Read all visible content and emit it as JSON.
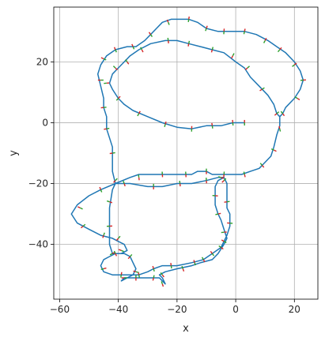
{
  "chart_data": {
    "type": "line",
    "title": "",
    "xlabel": "x",
    "ylabel": "y",
    "xlim": [
      -62,
      28
    ],
    "ylim": [
      -58,
      38
    ],
    "xticks": [
      -60,
      -40,
      -20,
      0,
      20
    ],
    "yticks": [
      -40,
      -20,
      0,
      20
    ],
    "grid": true,
    "aspect": "equal",
    "series": [
      {
        "color": "#1f77b4",
        "points": [
          [
            3,
            0
          ],
          [
            -1,
            0
          ],
          [
            -5,
            -1
          ],
          [
            -10,
            -1
          ],
          [
            -15,
            -2
          ],
          [
            -20,
            -1.5
          ],
          [
            -25,
            0
          ],
          [
            -30,
            2
          ],
          [
            -35,
            4
          ],
          [
            -38,
            6
          ],
          [
            -40,
            8
          ],
          [
            -42,
            11
          ],
          [
            -43,
            13
          ],
          [
            -42,
            16
          ],
          [
            -40,
            18
          ],
          [
            -38,
            20
          ],
          [
            -36,
            22
          ],
          [
            -33,
            24
          ],
          [
            -29,
            26
          ],
          [
            -24,
            27
          ],
          [
            -20,
            27
          ],
          [
            -16,
            26
          ],
          [
            -12,
            25
          ],
          [
            -8,
            24
          ],
          [
            -4,
            23
          ],
          [
            0,
            20
          ],
          [
            3,
            18
          ],
          [
            5,
            15
          ],
          [
            8,
            12
          ],
          [
            11,
            9
          ],
          [
            13,
            6
          ],
          [
            14,
            3
          ],
          [
            15,
            2
          ],
          [
            16,
            3
          ],
          [
            17,
            5
          ],
          [
            20,
            8
          ],
          [
            22,
            11
          ],
          [
            23,
            14
          ],
          [
            22,
            17
          ],
          [
            20,
            20
          ],
          [
            17,
            23
          ],
          [
            14,
            25
          ],
          [
            11,
            27
          ],
          [
            7,
            29
          ],
          [
            3,
            30
          ],
          [
            -2,
            30
          ],
          [
            -6,
            30
          ],
          [
            -10,
            31
          ],
          [
            -13,
            33
          ],
          [
            -16,
            34
          ],
          [
            -18,
            34
          ],
          [
            -22,
            34
          ],
          [
            -25,
            33
          ],
          [
            -27,
            31
          ],
          [
            -29,
            29
          ],
          [
            -31,
            27
          ],
          [
            -34,
            25
          ],
          [
            -37,
            25
          ],
          [
            -41,
            24
          ],
          [
            -44,
            22
          ],
          [
            -46,
            19
          ],
          [
            -47,
            16
          ],
          [
            -46,
            12
          ],
          [
            -45,
            8
          ],
          [
            -45,
            5
          ],
          [
            -44,
            2
          ],
          [
            -44,
            -2
          ],
          [
            -43,
            -5
          ],
          [
            -42,
            -8
          ],
          [
            -42,
            -12
          ],
          [
            -42,
            -16
          ],
          [
            -41,
            -20
          ],
          [
            -36,
            -18
          ],
          [
            -33,
            -17
          ],
          [
            -27,
            -17
          ],
          [
            -24,
            -17
          ],
          [
            -21,
            -17
          ],
          [
            -17,
            -17
          ],
          [
            -15,
            -17
          ],
          [
            -13,
            -16
          ],
          [
            -10,
            -16
          ],
          [
            -8,
            -17
          ],
          [
            -6,
            -17
          ],
          [
            -4,
            -17
          ],
          [
            -1,
            -17
          ],
          [
            2,
            -17
          ],
          [
            5,
            -16
          ],
          [
            8,
            -15
          ],
          [
            10,
            -13
          ],
          [
            12,
            -11
          ],
          [
            13,
            -8
          ],
          [
            14,
            -4
          ],
          [
            15,
            -1
          ],
          [
            15,
            2
          ]
        ]
      },
      {
        "color": "#1f77b4",
        "points": [
          [
            -41,
            -20
          ],
          [
            -46,
            -22
          ],
          [
            -50,
            -24
          ],
          [
            -54,
            -27
          ],
          [
            -56,
            -30
          ],
          [
            -54,
            -33
          ],
          [
            -50,
            -35
          ],
          [
            -46,
            -37
          ],
          [
            -42,
            -38
          ],
          [
            -40,
            -39
          ],
          [
            -38,
            -40
          ],
          [
            -37,
            -42
          ],
          [
            -39,
            -43
          ],
          [
            -42,
            -43
          ],
          [
            -43,
            -40
          ],
          [
            -43,
            -35
          ],
          [
            -43,
            -28
          ],
          [
            -42,
            -22
          ],
          [
            -41,
            -20
          ],
          [
            -36,
            -20
          ],
          [
            -30,
            -21
          ],
          [
            -25,
            -21
          ],
          [
            -20,
            -20
          ],
          [
            -15,
            -20
          ],
          [
            -10,
            -19
          ],
          [
            -6,
            -18
          ],
          [
            -4,
            -18
          ],
          [
            -3,
            -20
          ],
          [
            -3,
            -24
          ],
          [
            -3,
            -28
          ],
          [
            -2,
            -30
          ],
          [
            -2,
            -34
          ],
          [
            -3,
            -37
          ],
          [
            -4,
            -39
          ],
          [
            -5,
            -41
          ],
          [
            -8,
            -43
          ],
          [
            -11,
            -45
          ],
          [
            -15,
            -46
          ],
          [
            -20,
            -47
          ],
          [
            -25,
            -47
          ],
          [
            -28,
            -48
          ],
          [
            -30,
            -49
          ],
          [
            -33,
            -50
          ],
          [
            -35,
            -50
          ],
          [
            -38,
            -50
          ],
          [
            -40,
            -50
          ],
          [
            -42,
            -50
          ],
          [
            -45,
            -49
          ],
          [
            -46,
            -47
          ],
          [
            -45,
            -45
          ],
          [
            -43,
            -44
          ],
          [
            -41,
            -43
          ],
          [
            -38,
            -43
          ],
          [
            -36,
            -44
          ],
          [
            -35,
            -46
          ],
          [
            -34,
            -48
          ],
          [
            -35,
            -50
          ],
          [
            -37,
            -51
          ],
          [
            -39,
            -52
          ],
          [
            -38,
            -51
          ],
          [
            -37,
            -51
          ],
          [
            -34,
            -51
          ],
          [
            -31,
            -51
          ],
          [
            -28,
            -51
          ],
          [
            -26,
            -51
          ],
          [
            -25,
            -52
          ],
          [
            -24,
            -53
          ],
          [
            -25,
            -51
          ],
          [
            -26,
            -50
          ],
          [
            -24,
            -49
          ],
          [
            -20,
            -48
          ],
          [
            -15,
            -47
          ],
          [
            -12,
            -46
          ],
          [
            -8,
            -45
          ],
          [
            -6,
            -43
          ],
          [
            -4,
            -40
          ],
          [
            -3,
            -38
          ],
          [
            -4,
            -35
          ],
          [
            -5,
            -32
          ],
          [
            -6,
            -30
          ],
          [
            -7,
            -27
          ],
          [
            -7,
            -24
          ],
          [
            -7,
            -21
          ],
          [
            -6,
            -19
          ],
          [
            -4,
            -18
          ]
        ]
      }
    ],
    "markers": {
      "colors": [
        "#d62728",
        "#2ca02c"
      ],
      "points": [
        [
          3,
          0
        ],
        [
          -1,
          0
        ],
        [
          -8,
          -1
        ],
        [
          -15,
          -2
        ],
        [
          -24,
          -0.5
        ],
        [
          -33,
          3
        ],
        [
          -40,
          8
        ],
        [
          -44,
          13
        ],
        [
          -41,
          18
        ],
        [
          -37,
          20
        ],
        [
          -32,
          24
        ],
        [
          -23,
          27
        ],
        [
          -16,
          26
        ],
        [
          -8,
          24
        ],
        [
          -1,
          22
        ],
        [
          4,
          18
        ],
        [
          9,
          11
        ],
        [
          14,
          3
        ],
        [
          16,
          3
        ],
        [
          21,
          8
        ],
        [
          23,
          14
        ],
        [
          20,
          19
        ],
        [
          15,
          24
        ],
        [
          10,
          27
        ],
        [
          3,
          30
        ],
        [
          -4,
          30
        ],
        [
          -10,
          31
        ],
        [
          -16,
          34
        ],
        [
          -23,
          33
        ],
        [
          -29,
          29
        ],
        [
          -35,
          25
        ],
        [
          -41,
          24
        ],
        [
          -45,
          21
        ],
        [
          -46,
          14
        ],
        [
          -45,
          5
        ],
        [
          -44,
          -2
        ],
        [
          -42,
          -10
        ],
        [
          -41,
          -19
        ],
        [
          -33,
          -18
        ],
        [
          -25,
          -17
        ],
        [
          -17,
          -17
        ],
        [
          -10,
          -16
        ],
        [
          -4,
          -17
        ],
        [
          3,
          -17
        ],
        [
          9,
          -14
        ],
        [
          13,
          -9
        ],
        [
          15,
          -2
        ],
        [
          -46,
          -22
        ],
        [
          -53,
          -28
        ],
        [
          -52,
          -34
        ],
        [
          -45,
          -37
        ],
        [
          -40,
          -38
        ],
        [
          -39,
          -42
        ],
        [
          -42,
          -43
        ],
        [
          -43,
          -34
        ],
        [
          -43,
          -26
        ],
        [
          -38,
          -20
        ],
        [
          -28,
          -21
        ],
        [
          -19,
          -20
        ],
        [
          -10,
          -19
        ],
        [
          -4,
          -19
        ],
        [
          -3,
          -26
        ],
        [
          -2,
          -33
        ],
        [
          -4,
          -39
        ],
        [
          -8,
          -43
        ],
        [
          -14,
          -46
        ],
        [
          -22,
          -47
        ],
        [
          -28,
          -48
        ],
        [
          -33,
          -50
        ],
        [
          -39,
          -50
        ],
        [
          -45,
          -48
        ],
        [
          -41,
          -43
        ],
        [
          -36,
          -44
        ],
        [
          -34,
          -49
        ],
        [
          -38,
          -51
        ],
        [
          -34,
          -51
        ],
        [
          -28,
          -51
        ],
        [
          -25,
          -53
        ],
        [
          -25,
          -50
        ],
        [
          -18,
          -48
        ],
        [
          -11,
          -45
        ],
        [
          -5,
          -41
        ],
        [
          -4,
          -36
        ],
        [
          -6,
          -30
        ],
        [
          -7,
          -24
        ],
        [
          -5,
          -18
        ]
      ]
    }
  }
}
